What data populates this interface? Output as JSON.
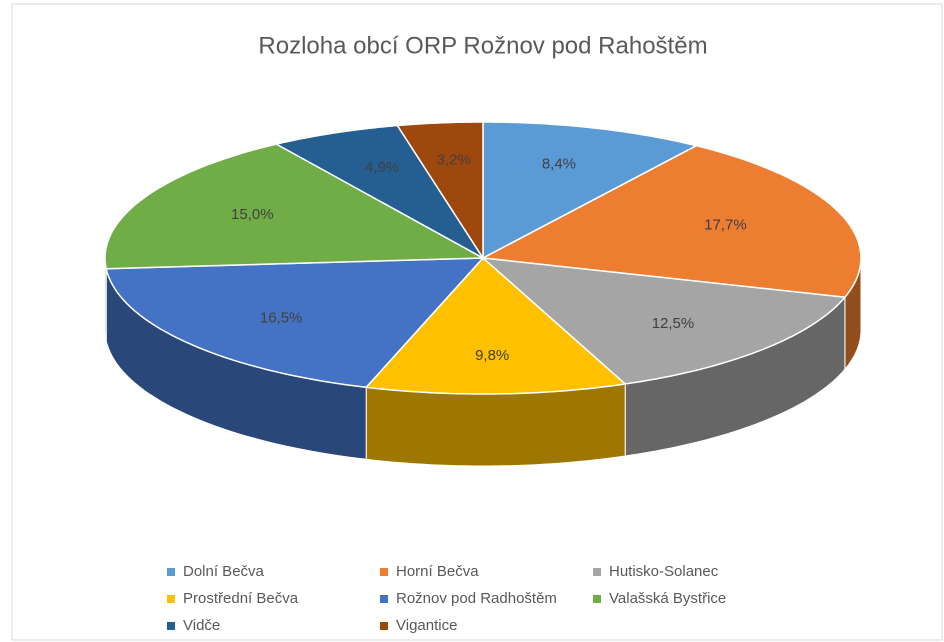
{
  "chart_data": {
    "type": "pie",
    "title": "Rozloha obcí ORP Rožnov pod Rahoštěm",
    "categories": [
      "Dolní Bečva",
      "Horní Bečva",
      "Hutisko-Solanec",
      "Prostřední Bečva",
      "Rožnov pod Radhoštěm",
      "Valašská Bystřice",
      "Vidče",
      "Vigantice"
    ],
    "values": [
      8.4,
      17.7,
      12.5,
      9.8,
      16.5,
      15.0,
      4.9,
      3.2
    ],
    "value_labels": [
      "8,4%",
      "17,7%",
      "12,5%",
      "9,8%",
      "16,5%",
      "15,0%",
      "4,9%",
      "3,2%"
    ],
    "colors": [
      "#5b9bd5",
      "#ed7d31",
      "#a5a5a5",
      "#ffc000",
      "#4472c4",
      "#70ad47",
      "#255e91",
      "#9e480e"
    ],
    "legend": "bottom"
  }
}
